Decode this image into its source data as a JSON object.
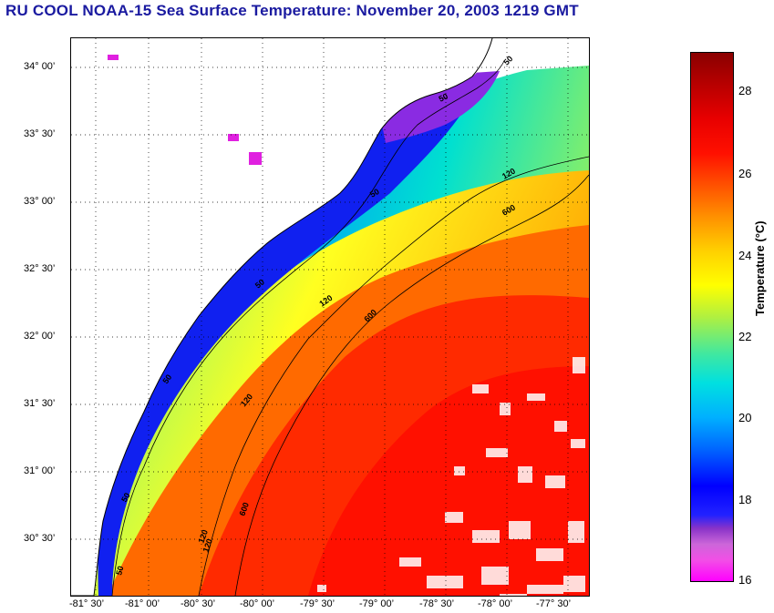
{
  "title": "RU COOL  NOAA-15  Sea Surface Temperature:  November 20, 2003 1219 GMT",
  "map": {
    "latitude_labels": [
      "34° 00’",
      "33° 30’",
      "33° 00’",
      "32° 30’",
      "32° 00’",
      "31° 30’",
      "31° 00’",
      "30° 30’"
    ],
    "longitude_labels": [
      "-81° 30’",
      "-81° 00’",
      "-80° 30’",
      "-80° 00’",
      "-79° 30’",
      "-79° 00’",
      "-78° 30’",
      "-78° 00’",
      "-77° 30’"
    ],
    "contour_labels": [
      "50",
      "120",
      "600",
      "50",
      "120",
      "600",
      "50",
      "120",
      "600",
      "50",
      "120",
      "50",
      "120",
      "50",
      "50"
    ],
    "colors": {
      "land": "#ffffff",
      "grid": "#000000",
      "title": "#1a1aa0"
    }
  },
  "colorbar": {
    "label": "Temperature (°C)",
    "ticks": [
      "28",
      "26",
      "24",
      "22",
      "20",
      "18",
      "16"
    ],
    "min": 16,
    "max": 29
  }
}
